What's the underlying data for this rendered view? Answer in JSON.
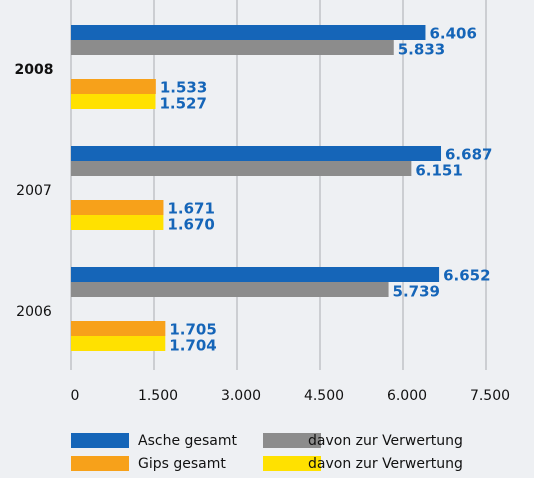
{
  "chart_data": {
    "type": "barh",
    "categories": [
      "2008",
      "2007",
      "2006"
    ],
    "series": [
      {
        "name": "Asche gesamt",
        "color": "#1565b8",
        "values": [
          6406,
          6687,
          6652
        ],
        "value_labels": [
          "6.406",
          "6.687",
          "6.652"
        ]
      },
      {
        "name": "davon zur Verwertung",
        "color": "#8c8c8c",
        "values": [
          5833,
          6151,
          5739
        ],
        "value_labels": [
          "5.833",
          "6.151",
          "5.739"
        ]
      },
      {
        "name": "Gips gesamt",
        "color": "#f7a11a",
        "values": [
          1533,
          1671,
          1705
        ],
        "value_labels": [
          "1.533",
          "1.671",
          "1.705"
        ]
      },
      {
        "name": "davon zur Verwertung",
        "color": "#ffe100",
        "values": [
          1527,
          1670,
          1704
        ],
        "value_labels": [
          "1.527",
          "1.670",
          "1.704"
        ]
      }
    ],
    "xlim": [
      0,
      7500
    ],
    "xticks": [
      0,
      {
        "value": 1500,
        "label": "1.500"
      },
      {
        "value": 3000,
        "label": "3.000"
      },
      {
        "value": 4500,
        "label": "4.500"
      },
      {
        "value": 6000,
        "label": "6.000"
      },
      {
        "value": 7500,
        "label": "7.500"
      }
    ],
    "grid": true
  }
}
